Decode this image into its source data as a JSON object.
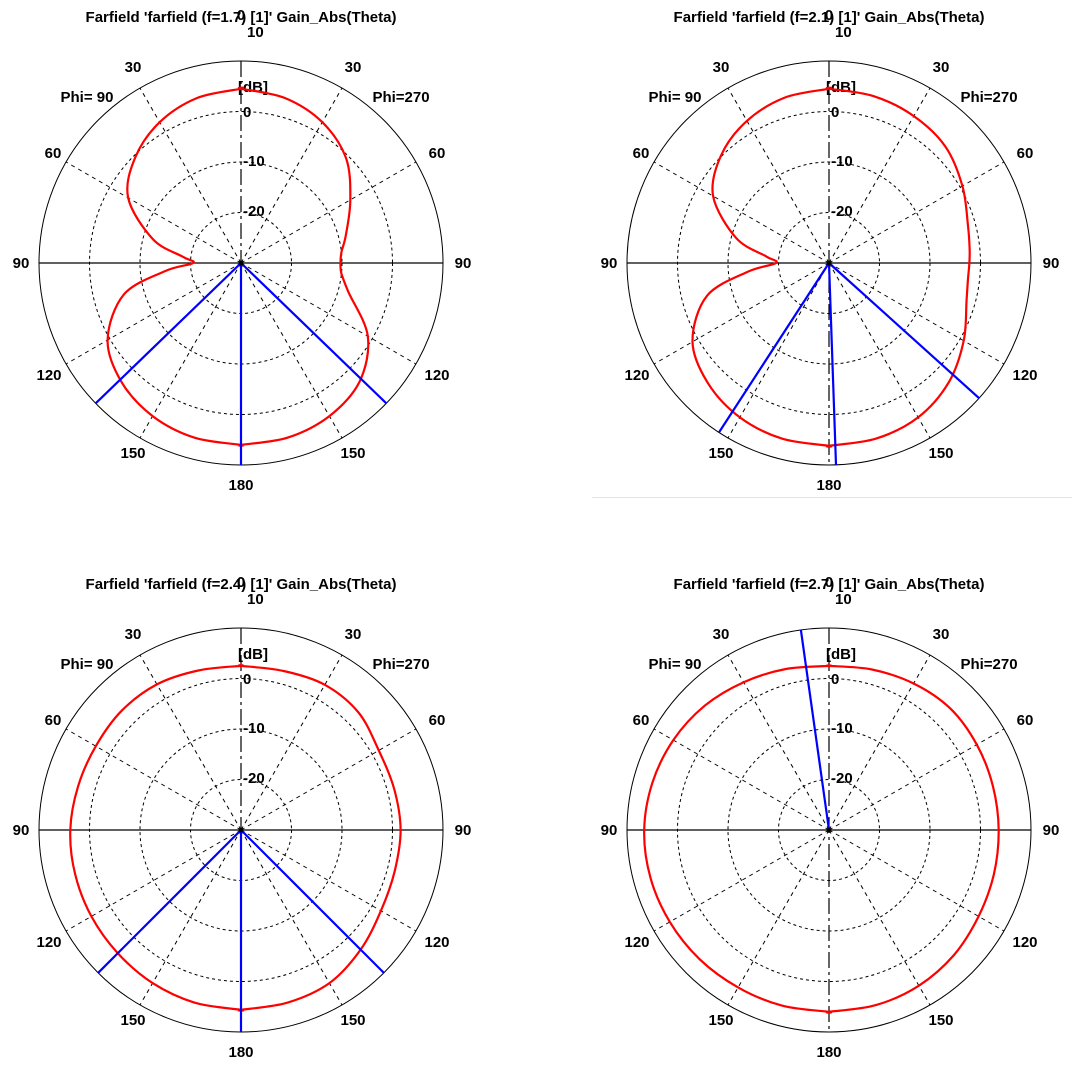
{
  "polar_axis": {
    "angle_labels": [
      "0",
      "30",
      "60",
      "90",
      "120",
      "150",
      "180",
      "150",
      "120",
      "90",
      "60",
      "30"
    ],
    "phi_left": "Phi= 90",
    "phi_right": "Phi=270",
    "unit": "[dB]",
    "ring_labels": [
      "10",
      "0",
      "-10",
      "-20"
    ],
    "ring_values": [
      10,
      0,
      -10,
      -20
    ],
    "r_min_db": -30
  },
  "colors": {
    "pattern": "#ff0000",
    "beam": "#0000ff",
    "axis": "#000000",
    "grid": "#000000"
  },
  "chart_data": [
    {
      "type": "polar",
      "title": "Farfield 'farfield (f=1.7) [1]' Gain_Abs(Theta)",
      "theta_deg": [
        0,
        15,
        30,
        45,
        60,
        75,
        84,
        90,
        96,
        105,
        120,
        135,
        150,
        165,
        180
      ],
      "gain_db_phi90": [
        4.5,
        3.8,
        2.2,
        -0.4,
        -4.2,
        -12.0,
        -18.5,
        -20.5,
        -15.0,
        -6.0,
        0.5,
        3.4,
        5.0,
        5.8,
        6.0
      ],
      "gain_db_phi270": [
        4.5,
        3.8,
        2.2,
        -0.6,
        -5.0,
        -8.5,
        -10.0,
        -10.3,
        -10.0,
        -8.0,
        -1.0,
        3.2,
        5.0,
        5.8,
        6.0
      ],
      "beam_lines": [
        {
          "theta_deg": 180,
          "side": "phi90",
          "gain_db": 10
        },
        {
          "theta_deg": 134,
          "side": "phi90",
          "gain_db": 10
        },
        {
          "theta_deg": 134,
          "side": "phi270",
          "gain_db": 10
        }
      ]
    },
    {
      "type": "polar",
      "title": "Farfield 'farfield (f=2.1) [1]' Gain_Abs(Theta)",
      "theta_deg": [
        0,
        15,
        30,
        45,
        60,
        75,
        84,
        90,
        96,
        105,
        120,
        135,
        150,
        165,
        180
      ],
      "gain_db_phi90": [
        4.5,
        3.9,
        2.5,
        0.2,
        -3.5,
        -11.0,
        -17.5,
        -19.5,
        -14.0,
        -5.0,
        1.2,
        3.8,
        5.3,
        6.0,
        6.2
      ],
      "gain_db_phi270": [
        4.5,
        4.2,
        3.6,
        2.6,
        0.5,
        -1.5,
        -2.0,
        -2.2,
        -2.3,
        -1.8,
        0.8,
        3.5,
        5.3,
        6.0,
        6.2
      ],
      "beam_lines": [
        {
          "theta_deg": 178,
          "side": "phi270",
          "gain_db": 10
        },
        {
          "theta_deg": 147,
          "side": "phi90",
          "gain_db": 10
        },
        {
          "theta_deg": 132,
          "side": "phi270",
          "gain_db": 10
        }
      ]
    },
    {
      "type": "polar",
      "title": "Farfield 'farfield (f=2.4) [1]' Gain_Abs(Theta)",
      "theta_deg": [
        0,
        15,
        30,
        45,
        60,
        75,
        90,
        105,
        120,
        135,
        150,
        165,
        180
      ],
      "gain_db_phi90": [
        2.5,
        2.7,
        3.3,
        3.4,
        3.2,
        3.4,
        3.8,
        4.0,
        4.2,
        4.5,
        5.0,
        5.4,
        5.6
      ],
      "gain_db_phi270": [
        2.5,
        2.6,
        3.2,
        2.9,
        1.5,
        1.4,
        1.6,
        1.5,
        2.0,
        3.5,
        5.0,
        5.4,
        5.6
      ],
      "beam_lines": [
        {
          "theta_deg": 180,
          "side": "phi90",
          "gain_db": 10
        },
        {
          "theta_deg": 135,
          "side": "phi90",
          "gain_db": 10
        },
        {
          "theta_deg": 135,
          "side": "phi270",
          "gain_db": 10
        }
      ]
    },
    {
      "type": "polar",
      "title": "Farfield 'farfield (f=2.7) [1]' Gain_Abs(Theta)",
      "theta_deg": [
        0,
        15,
        30,
        45,
        60,
        75,
        90,
        105,
        120,
        135,
        150,
        165,
        180
      ],
      "gain_db_phi90": [
        2.5,
        3.0,
        3.8,
        4.8,
        5.6,
        6.2,
        6.6,
        6.6,
        6.4,
        6.2,
        6.0,
        6.0,
        6.0
      ],
      "gain_db_phi270": [
        2.5,
        2.9,
        3.5,
        4.0,
        3.8,
        3.6,
        3.6,
        3.8,
        4.2,
        5.0,
        5.6,
        5.9,
        6.0
      ],
      "beam_lines": [
        {
          "theta_deg": 8,
          "side": "phi90",
          "gain_db": 10
        }
      ]
    }
  ]
}
